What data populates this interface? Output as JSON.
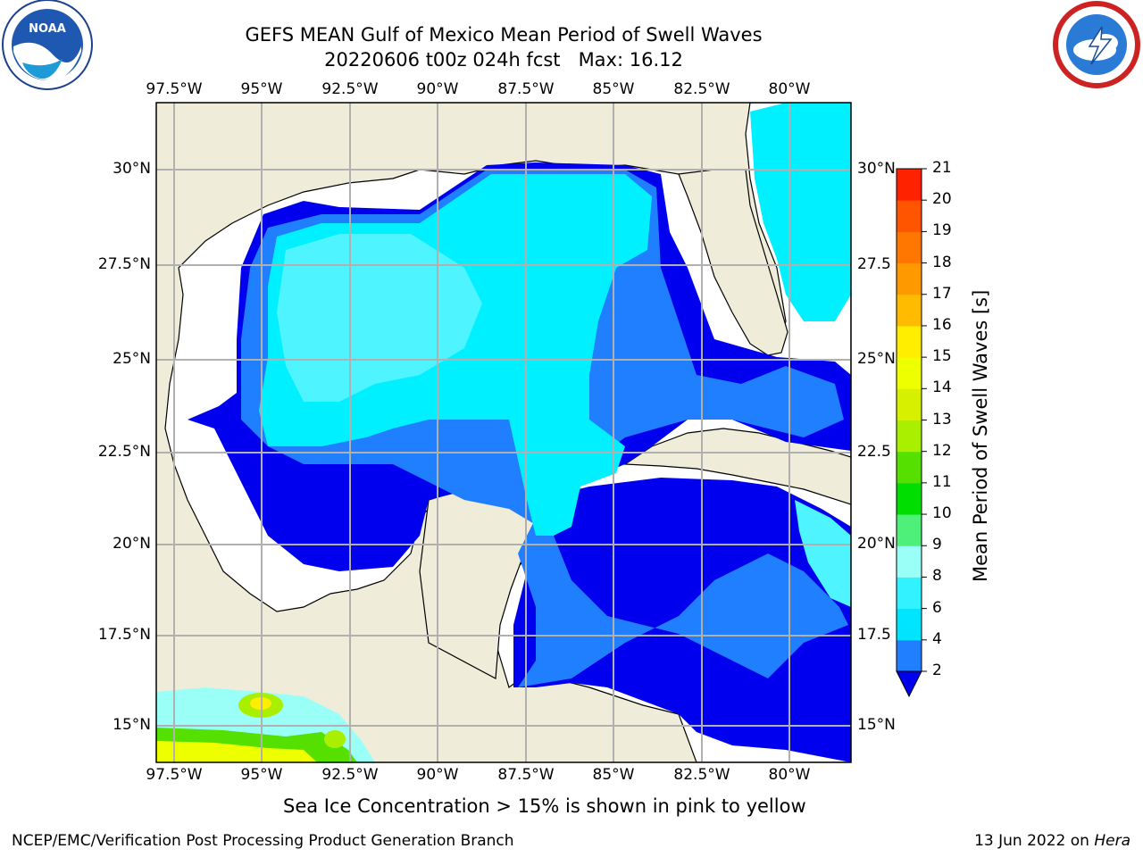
{
  "header": {
    "title_line1": "GEFS MEAN Gulf of Mexico Mean Period of Swell Waves",
    "title_line2": "20220606 t00z 024h fcst   Max: 16.12",
    "left_logo": {
      "icon": "noaa-logo-icon",
      "text": "NOAA"
    },
    "right_logo": {
      "icon": "national-weather-service-logo-icon"
    }
  },
  "map": {
    "x_ticks": [
      "97.5°W",
      "95°W",
      "92.5°W",
      "90°W",
      "87.5°W",
      "85°W",
      "82.5°W",
      "80°W"
    ],
    "y_ticks_left": [
      "30°N",
      "27.5°N",
      "25°N",
      "22.5°N",
      "20°N",
      "17.5°N",
      "15°N"
    ],
    "y_ticks_right": [
      "30°N",
      "27.5",
      "25°N",
      "22.5",
      "20°N",
      "17.5",
      "15°N"
    ],
    "land_color": "#efedd9",
    "grid_color": "#b0b0b0"
  },
  "colorbar": {
    "label": "Mean Period of Swell Waves [s]",
    "ticks": [
      "2",
      "4",
      "6",
      "8",
      "9",
      "10",
      "11",
      "12",
      "13",
      "14",
      "15",
      "16",
      "17",
      "18",
      "19",
      "20",
      "21"
    ],
    "colors": [
      "#1f7fff",
      "#00e5ff",
      "#33f2ff",
      "#99fff7",
      "#4ff07a",
      "#00dd00",
      "#55e000",
      "#aaee00",
      "#d6f000",
      "#eeff00",
      "#ffee00",
      "#ffbb00",
      "#ff9900",
      "#ff7700",
      "#ff5500",
      "#ff2200",
      "#ff0000"
    ],
    "extend_color": "#0000ee"
  },
  "notes": {
    "ice_note": "Sea Ice Concentration > 15% is shown in pink to yellow"
  },
  "footer": {
    "left": "NCEP/EMC/Verification Post Processing Product Generation Branch",
    "right_prefix": "13 Jun 2022 on ",
    "right_host": "Hera"
  }
}
